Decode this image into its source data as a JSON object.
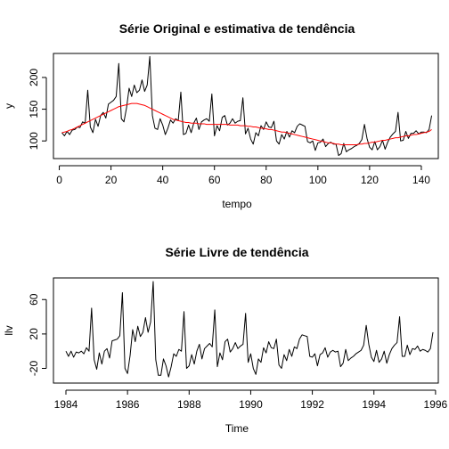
{
  "chart_data": [
    {
      "type": "line",
      "title": "Série Original e estimativa de tendência",
      "xlabel": "tempo",
      "ylabel": "y",
      "xlim": [
        1,
        144
      ],
      "ylim": [
        75,
        235
      ],
      "x_ticks": [
        0,
        20,
        40,
        60,
        80,
        100,
        120,
        140
      ],
      "y_ticks": [
        100,
        150,
        200
      ],
      "grid": false,
      "series": [
        {
          "color": "#000000",
          "x_start": 1,
          "values": [
            113,
            108,
            115,
            110,
            117,
            118,
            122,
            121,
            130,
            128,
            180,
            122,
            113,
            134,
            123,
            140,
            145,
            136,
            158,
            161,
            164,
            170,
            222,
            135,
            130,
            152,
            183,
            170,
            188,
            176,
            180,
            196,
            178,
            188,
            233,
            140,
            120,
            118,
            135,
            125,
            110,
            120,
            133,
            128,
            135,
            132,
            177,
            110,
            112,
            125,
            113,
            128,
            136,
            118,
            130,
            133,
            135,
            131,
            174,
            108,
            124,
            116,
            137,
            140,
            125,
            128,
            135,
            128,
            131,
            132,
            168,
            111,
            120,
            103,
            95,
            113,
            108,
            124,
            118,
            130,
            122,
            121,
            131,
            100,
            95,
            110,
            103,
            115,
            106,
            116,
            113,
            123,
            127,
            125,
            123,
            99,
            97,
            100,
            85,
            97,
            98,
            103,
            91,
            96,
            98,
            95,
            95,
            77,
            80,
            96,
            83,
            86,
            88,
            91,
            93,
            96,
            102,
            126,
            104,
            90,
            86,
            99,
            86,
            91,
            101,
            87,
            98,
            106,
            111,
            115,
            145,
            100,
            101,
            115,
            104,
            112,
            112,
            116,
            111,
            114,
            114,
            113,
            118,
            140
          ]
        },
        {
          "color": "#ff0000",
          "x_start": 1,
          "values": [
            113,
            114,
            115,
            117,
            118,
            120,
            122,
            124,
            126,
            128,
            130,
            132,
            134,
            136,
            138,
            140,
            142,
            144,
            146,
            148,
            150,
            152,
            154,
            155,
            156,
            157,
            158,
            159,
            159,
            159,
            158,
            157,
            156,
            154,
            152,
            150,
            148,
            146,
            144,
            142,
            140,
            138,
            136,
            134,
            133,
            132,
            131,
            130,
            129,
            129,
            128,
            128,
            128,
            127,
            127,
            127,
            126,
            126,
            126,
            126,
            126,
            126,
            126,
            126,
            126,
            125,
            125,
            125,
            125,
            124,
            124,
            124,
            123,
            123,
            122,
            122,
            121,
            120,
            120,
            119,
            118,
            118,
            117,
            116,
            115,
            114,
            114,
            113,
            112,
            111,
            110,
            109,
            108,
            107,
            106,
            105,
            104,
            103,
            102,
            101,
            100,
            99,
            98,
            97,
            97,
            96,
            95,
            95,
            94,
            94,
            94,
            94,
            94,
            94,
            94,
            95,
            95,
            96,
            96,
            97,
            98,
            98,
            99,
            100,
            101,
            101,
            102,
            103,
            104,
            105,
            105,
            106,
            107,
            108,
            108,
            109,
            110,
            110,
            111,
            112,
            113,
            114,
            115,
            118
          ]
        }
      ]
    },
    {
      "type": "line",
      "title": "Série Livre de tendência",
      "xlabel": "Time",
      "ylabel": "llv",
      "xlim": [
        1984,
        1995.9167
      ],
      "ylim": [
        -35,
        82
      ],
      "x_ticks": [
        1984,
        1986,
        1988,
        1990,
        1992,
        1994,
        1996
      ],
      "y_ticks": [
        -20,
        20,
        60
      ],
      "grid": false,
      "series": [
        {
          "color": "#000000",
          "x_start": 1984,
          "x_step": 0.0833333,
          "derive_from": "difference of series 1 and 2 of the first chart"
        }
      ]
    }
  ]
}
